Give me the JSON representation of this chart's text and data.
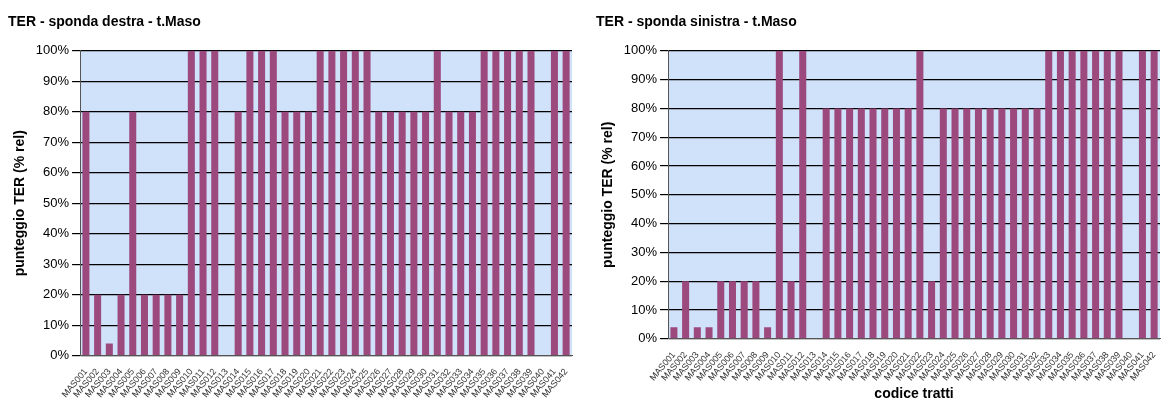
{
  "chart_data": [
    {
      "type": "bar",
      "title": "TER - sponda destra - t.Maso",
      "ylabel": "punteggio TER (% rel)",
      "categories": [
        "MAS001",
        "MAS002",
        "MAS003",
        "MAS004",
        "MAS005",
        "MAS006",
        "MAS007",
        "MAS008",
        "MAS009",
        "MAS010",
        "MAS011",
        "MAS012",
        "MAS013",
        "MAS014",
        "MAS015",
        "MAS016",
        "MAS017",
        "MAS018",
        "MAS019",
        "MAS020",
        "MAS021",
        "MAS022",
        "MAS023",
        "MAS024",
        "MAS025",
        "MAS026",
        "MAS027",
        "MAS028",
        "MAS029",
        "MAS030",
        "MAS031",
        "MAS032",
        "MAS033",
        "MAS034",
        "MAS035",
        "MAS036",
        "MAS037",
        "MAS038",
        "MAS039",
        "MAS040",
        "MAS041",
        "MAS042"
      ],
      "values": [
        80,
        20,
        4,
        20,
        80,
        20,
        20,
        20,
        20,
        100,
        100,
        100,
        0,
        80,
        100,
        100,
        100,
        80,
        80,
        80,
        100,
        100,
        100,
        100,
        100,
        80,
        80,
        80,
        80,
        80,
        100,
        80,
        80,
        80,
        100,
        100,
        100,
        100,
        100,
        0,
        100,
        100
      ],
      "color": "#9c4a7e",
      "ylim": [
        0,
        100
      ],
      "yticks": [
        {
          "value": 0,
          "label": "0%"
        },
        {
          "value": 10,
          "label": "10%"
        },
        {
          "value": 20,
          "label": "20%"
        },
        {
          "value": 30,
          "label": "30%"
        },
        {
          "value": 40,
          "label": "40%"
        },
        {
          "value": 50,
          "label": "50%"
        },
        {
          "value": 60,
          "label": "60%"
        },
        {
          "value": 70,
          "label": "70%"
        },
        {
          "value": 80,
          "label": "80%"
        },
        {
          "value": 90,
          "label": "90%"
        },
        {
          "value": 100,
          "label": "100%"
        }
      ],
      "grid": "y",
      "legend": false
    },
    {
      "type": "bar",
      "title": "TER - sponda sinistra - t.Maso",
      "xlabel": "codice tratti",
      "ylabel": "punteggio TER (% rel)",
      "categories": [
        "MAS001",
        "MAS002",
        "MAS003",
        "MAS004",
        "MAS005",
        "MAS006",
        "MAS007",
        "MAS008",
        "MAS009",
        "MAS010",
        "MAS011",
        "MAS012",
        "MAS013",
        "MAS014",
        "MAS015",
        "MAS016",
        "MAS017",
        "MAS018",
        "MAS019",
        "MAS020",
        "MAS021",
        "MAS022",
        "MAS023",
        "MAS024",
        "MAS025",
        "MAS026",
        "MAS027",
        "MAS028",
        "MAS029",
        "MAS030",
        "MAS031",
        "MAS032",
        "MAS033",
        "MAS034",
        "MAS035",
        "MAS036",
        "MAS037",
        "MAS038",
        "MAS039",
        "MAS040",
        "MAS041",
        "MAS042"
      ],
      "values": [
        4,
        20,
        4,
        4,
        20,
        20,
        20,
        20,
        4,
        100,
        20,
        100,
        0,
        80,
        80,
        80,
        80,
        80,
        80,
        80,
        80,
        100,
        20,
        80,
        80,
        80,
        80,
        80,
        80,
        80,
        80,
        80,
        100,
        100,
        100,
        100,
        100,
        100,
        100,
        0,
        100,
        100
      ],
      "color": "#9c4a7e",
      "ylim": [
        0,
        100
      ],
      "yticks": [
        {
          "value": 0,
          "label": "0%"
        },
        {
          "value": 10,
          "label": "10%"
        },
        {
          "value": 20,
          "label": "20%"
        },
        {
          "value": 30,
          "label": "30%"
        },
        {
          "value": 40,
          "label": "40%"
        },
        {
          "value": 50,
          "label": "50%"
        },
        {
          "value": 60,
          "label": "60%"
        },
        {
          "value": 70,
          "label": "70%"
        },
        {
          "value": 80,
          "label": "80%"
        },
        {
          "value": 90,
          "label": "90%"
        },
        {
          "value": 100,
          "label": "100%"
        }
      ],
      "grid": "y",
      "legend": false
    }
  ]
}
